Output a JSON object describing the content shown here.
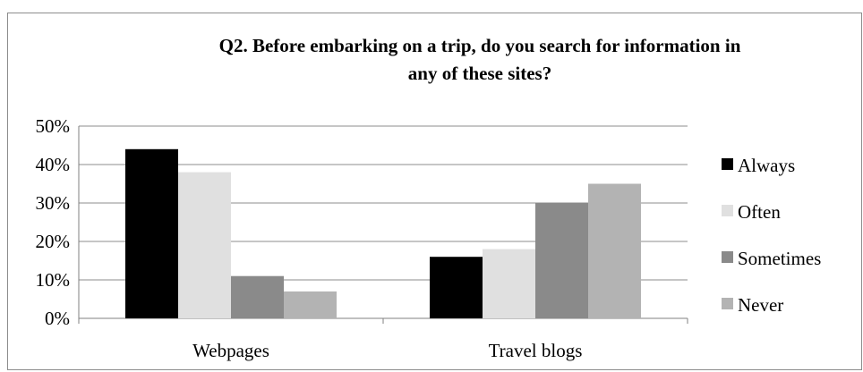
{
  "chart_data": {
    "type": "bar",
    "title_lines": [
      "Q2. Before embarking on a trip, do you search for information in",
      "any of these sites?"
    ],
    "categories": [
      "Webpages",
      "Travel blogs"
    ],
    "series": [
      {
        "name": "Always",
        "values": [
          0.44,
          0.16
        ],
        "color": "#000000"
      },
      {
        "name": "Often",
        "values": [
          0.38,
          0.18
        ],
        "color": "#e0e0e0"
      },
      {
        "name": "Sometimes",
        "values": [
          0.11,
          0.3
        ],
        "color": "#8a8a8a"
      },
      {
        "name": "Never",
        "values": [
          0.07,
          0.35
        ],
        "color": "#b3b3b3"
      }
    ],
    "ylim": [
      0,
      0.5
    ],
    "yticks": [
      "0%",
      "10%",
      "20%",
      "30%",
      "40%",
      "50%"
    ],
    "grid": true,
    "legend_position": "right"
  }
}
